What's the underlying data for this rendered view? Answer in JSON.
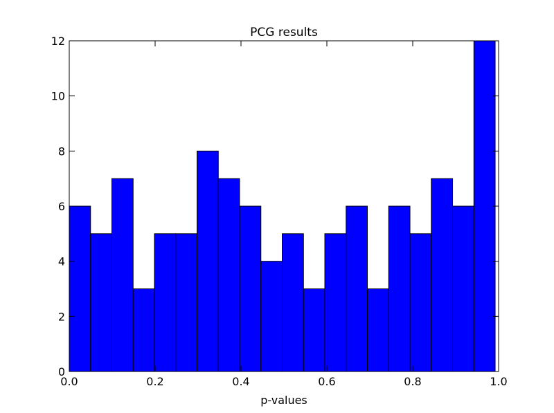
{
  "chart_data": {
    "type": "histogram",
    "title": "PCG results",
    "xlabel": "p-values",
    "bins": [
      0,
      0.0496,
      0.0992,
      0.1488,
      0.1984,
      0.248,
      0.2976,
      0.3472,
      0.3968,
      0.4464,
      0.496,
      0.5456,
      0.5952,
      0.6448,
      0.6944,
      0.744,
      0.7936,
      0.8432,
      0.8928,
      0.9424,
      0.992
    ],
    "values": [
      6,
      5,
      7,
      3,
      5,
      5,
      8,
      7,
      6,
      4,
      5,
      3,
      5,
      6,
      3,
      6,
      5,
      7,
      6,
      12
    ],
    "color": "#0000ff",
    "edgecolor": "#000000",
    "xlim": [
      0,
      1
    ],
    "xticks": [
      {
        "value": 0,
        "label": "0.0"
      },
      0.2,
      0.4,
      0.6,
      0.8,
      {
        "value": 1,
        "label": "1.0"
      }
    ],
    "ylim": [
      0,
      12
    ],
    "yticks": [
      0,
      2,
      4,
      6,
      8,
      10,
      12
    ],
    "grid": false
  }
}
